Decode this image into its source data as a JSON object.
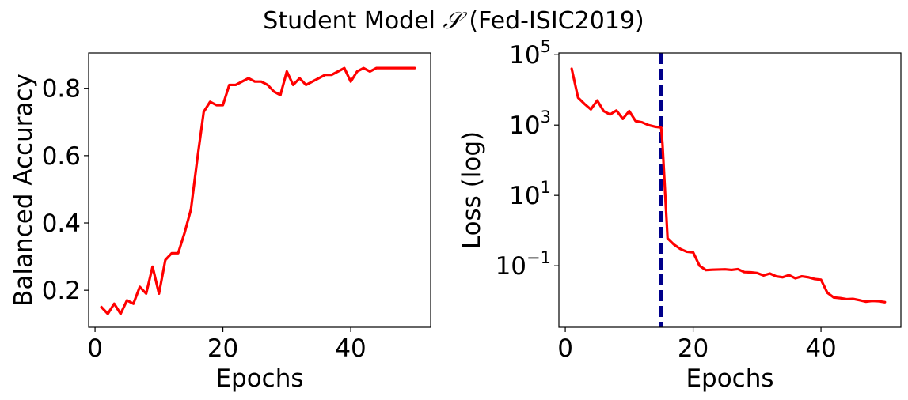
{
  "figure": {
    "title_prefix": "Student Model ",
    "title_symbol": "𝒮",
    "title_suffix": " (Fed-ISIC2019)"
  },
  "colors": {
    "series": "#ff0000",
    "marker": "#00008b"
  },
  "chart_data": [
    {
      "type": "line",
      "xlabel": "Epochs",
      "ylabel": "Balanced Accuracy",
      "xlim": [
        -1,
        52.5
      ],
      "ylim": [
        0.09,
        0.905
      ],
      "xticks": [
        0,
        20,
        40
      ],
      "yticks": [
        0.2,
        0.4,
        0.6,
        0.8
      ],
      "ytick_labels": [
        "0.2",
        "0.4",
        "0.6",
        "0.8"
      ],
      "grid": false,
      "series": [
        {
          "color": "#ff0000",
          "x": [
            1,
            2,
            3,
            4,
            5,
            6,
            7,
            8,
            9,
            10,
            11,
            12,
            13,
            14,
            15,
            16,
            17,
            18,
            19,
            20,
            21,
            22,
            23,
            24,
            25,
            26,
            27,
            28,
            29,
            30,
            31,
            32,
            33,
            34,
            35,
            36,
            37,
            38,
            39,
            40,
            41,
            42,
            43,
            44,
            45,
            46,
            47,
            48,
            49,
            50
          ],
          "y": [
            0.15,
            0.13,
            0.16,
            0.13,
            0.17,
            0.16,
            0.21,
            0.19,
            0.27,
            0.19,
            0.29,
            0.31,
            0.31,
            0.37,
            0.44,
            0.59,
            0.73,
            0.76,
            0.75,
            0.75,
            0.81,
            0.81,
            0.82,
            0.83,
            0.82,
            0.82,
            0.81,
            0.79,
            0.78,
            0.85,
            0.81,
            0.83,
            0.81,
            0.82,
            0.83,
            0.84,
            0.84,
            0.85,
            0.86,
            0.82,
            0.85,
            0.86,
            0.85,
            0.86,
            0.86,
            0.86,
            0.86,
            0.86,
            0.86,
            0.86
          ]
        }
      ]
    },
    {
      "type": "line",
      "xlabel": "Epochs",
      "ylabel": "Loss (log)",
      "yscale": "log",
      "xlim": [
        -1,
        52.5
      ],
      "ylim_exp": [
        -2.75,
        5.05
      ],
      "xticks": [
        0,
        20,
        40
      ],
      "yticks": [
        0.1,
        10,
        1000,
        100000
      ],
      "ytick_base": "10",
      "ytick_exponents": [
        "−1",
        "1",
        "3",
        "5"
      ],
      "grid": false,
      "vline": {
        "x": 15,
        "style": "dashed",
        "color": "#00008b"
      },
      "series": [
        {
          "color": "#ff0000",
          "x": [
            1,
            2,
            3,
            4,
            5,
            6,
            7,
            8,
            9,
            10,
            11,
            12,
            13,
            14,
            15,
            15.2,
            16,
            17,
            18,
            19,
            20,
            21,
            22,
            23,
            24,
            25,
            26,
            27,
            28,
            29,
            30,
            31,
            32,
            33,
            34,
            35,
            36,
            37,
            38,
            39,
            40,
            41,
            42,
            43,
            44,
            45,
            46,
            47,
            48,
            49,
            50
          ],
          "y": [
            40000,
            6000,
            4000,
            2800,
            5000,
            2500,
            2000,
            2600,
            1500,
            2500,
            1300,
            1200,
            1000,
            900,
            850,
            300,
            0.6,
            0.4,
            0.3,
            0.25,
            0.24,
            0.1,
            0.075,
            0.077,
            0.078,
            0.079,
            0.076,
            0.08,
            0.066,
            0.065,
            0.062,
            0.053,
            0.06,
            0.05,
            0.047,
            0.054,
            0.044,
            0.05,
            0.047,
            0.042,
            0.04,
            0.017,
            0.0125,
            0.012,
            0.0112,
            0.0114,
            0.0105,
            0.0095,
            0.01,
            0.0098,
            0.0092
          ]
        }
      ]
    }
  ]
}
